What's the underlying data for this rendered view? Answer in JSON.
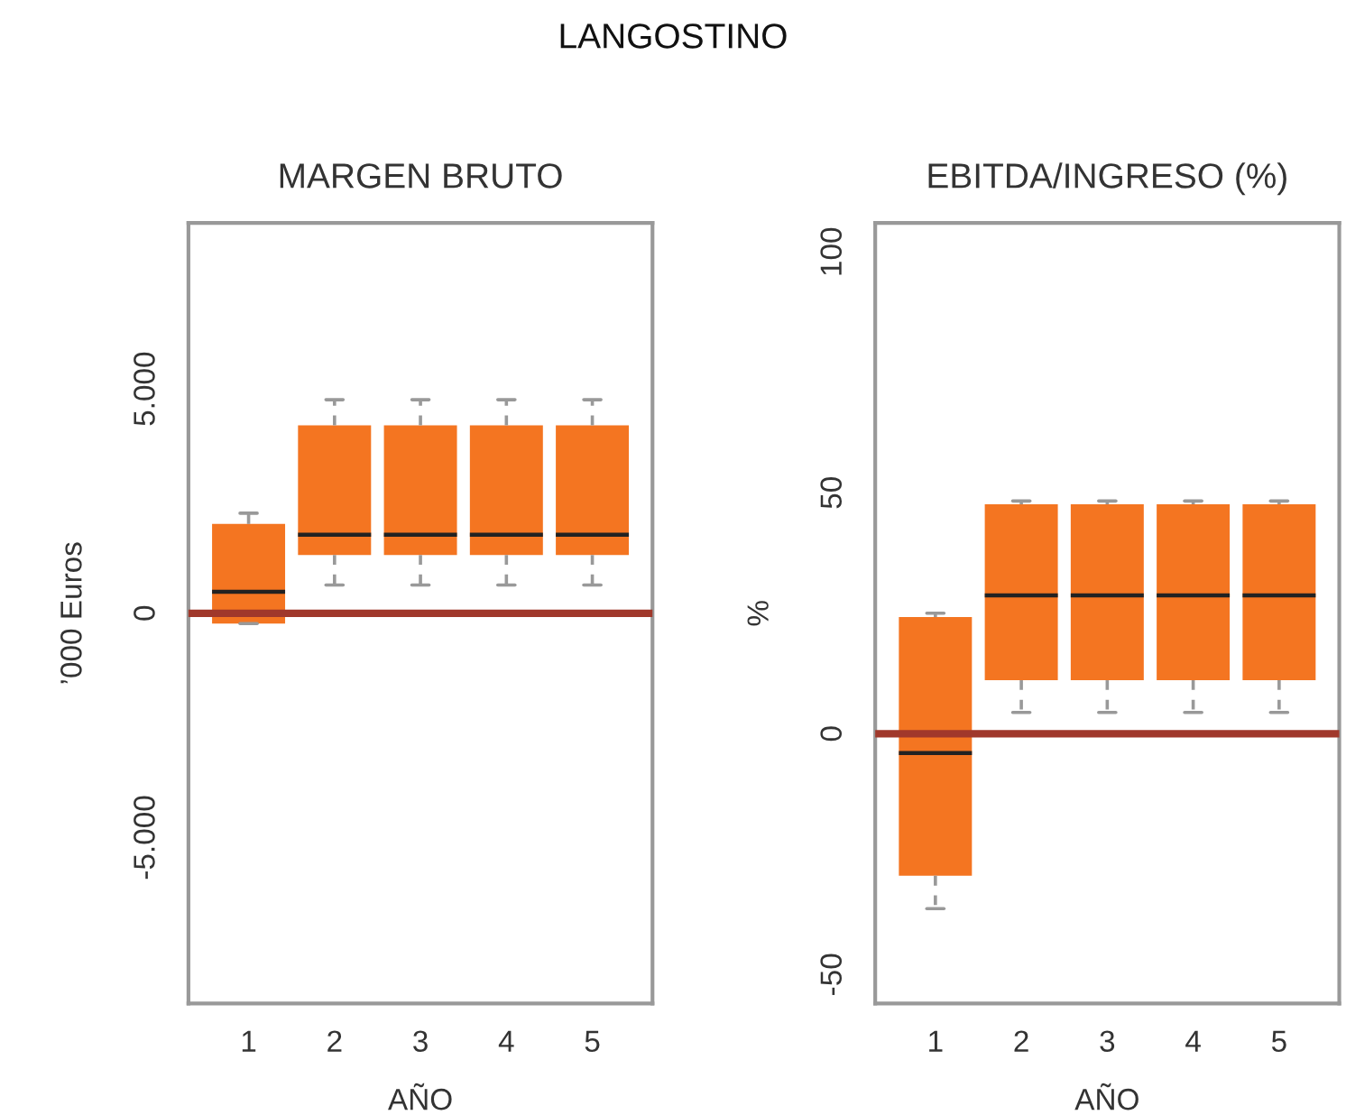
{
  "chart_data": [
    {
      "type": "box",
      "title": "MARGEN BRUTO",
      "xlabel": "AÑO",
      "ylabel": "’000 Euros",
      "annotations": [
        "LANGOSTINO"
      ],
      "categories": [
        "1",
        "2",
        "3",
        "4",
        "5"
      ],
      "color": "#f47521",
      "boxes": [
        {
          "low": -230,
          "q1": -230,
          "median": 480,
          "q3": 1990,
          "high": 2230
        },
        {
          "low": 630,
          "q1": 1300,
          "median": 1750,
          "q3": 4190,
          "high": 4760
        },
        {
          "low": 630,
          "q1": 1300,
          "median": 1750,
          "q3": 4190,
          "high": 4760
        },
        {
          "low": 630,
          "q1": 1300,
          "median": 1750,
          "q3": 4190,
          "high": 4760
        },
        {
          "low": 630,
          "q1": 1300,
          "median": 1750,
          "q3": 4190,
          "high": 4760
        }
      ],
      "ylim": [
        -8700,
        8700
      ],
      "yticks": [
        {
          "value": -5000,
          "label": "-5.000"
        },
        0,
        {
          "value": 5000,
          "label": "5.000"
        }
      ],
      "ref_lines": [
        {
          "axis": "y",
          "value": 0,
          "color": "#a0382b"
        }
      ],
      "grid": false
    },
    {
      "type": "box",
      "title": "EBITDA/INGRESO (%)",
      "xlabel": "AÑO",
      "ylabel": "%",
      "categories": [
        "1",
        "2",
        "3",
        "4",
        "5"
      ],
      "color": "#f47521",
      "boxes": [
        {
          "low": -36.3,
          "q1": -29.5,
          "median": -4,
          "q3": 24.2,
          "high": 25
        },
        {
          "low": 4.4,
          "q1": 11.1,
          "median": 28.7,
          "q3": 47.6,
          "high": 48.3
        },
        {
          "low": 4.4,
          "q1": 11.1,
          "median": 28.7,
          "q3": 47.6,
          "high": 48.3
        },
        {
          "low": 4.4,
          "q1": 11.1,
          "median": 28.7,
          "q3": 47.6,
          "high": 48.3
        },
        {
          "low": 4.4,
          "q1": 11.1,
          "median": 28.7,
          "q3": 47.6,
          "high": 48.3
        }
      ],
      "ylim": [
        -56,
        106
      ],
      "yticks": [
        -50,
        0,
        50,
        100
      ],
      "ref_lines": [
        {
          "axis": "y",
          "value": 0,
          "color": "#a0382b"
        }
      ],
      "grid": false
    }
  ]
}
